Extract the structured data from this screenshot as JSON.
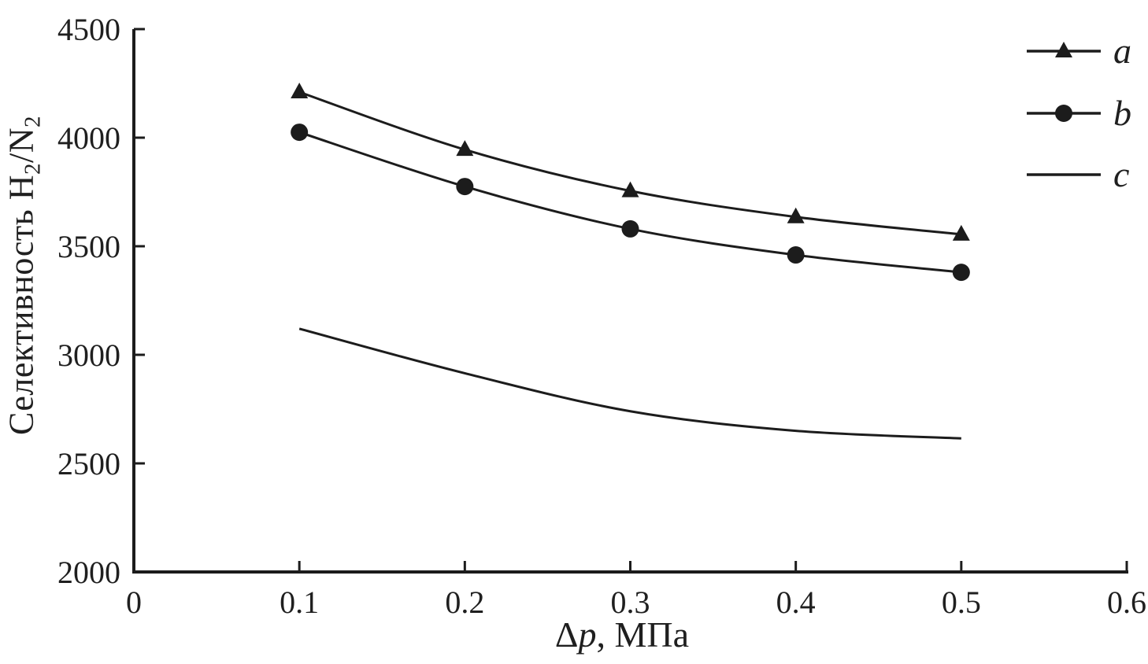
{
  "chart_data": {
    "type": "line",
    "title": "",
    "xlabel": "Δp, МПа",
    "xlabel_parts": [
      "Δ",
      "p",
      ", МПа"
    ],
    "ylabel": "Селективность H2/N2",
    "ylabel_parts": [
      "Селективность H",
      "2",
      "/N",
      "2"
    ],
    "xlim": [
      0,
      0.6
    ],
    "ylim": [
      2000,
      4500
    ],
    "x_ticks": [
      0,
      0.1,
      0.2,
      0.3,
      0.4,
      0.5,
      0.6
    ],
    "x_tick_labels": [
      "0",
      "0.1",
      "0.2",
      "0.3",
      "0.4",
      "0.5",
      "0.6"
    ],
    "y_ticks": [
      2000,
      2500,
      3000,
      3500,
      4000,
      4500
    ],
    "y_tick_labels": [
      "2000",
      "2500",
      "3000",
      "3500",
      "4000",
      "4500"
    ],
    "grid": false,
    "line_color": "#1c1c1c",
    "text_color": "#1f1f1f",
    "background_color": "#ffffff",
    "x": [
      0.1,
      0.2,
      0.3,
      0.4,
      0.5
    ],
    "series": [
      {
        "name": "a",
        "marker": "triangle",
        "values": [
          4210,
          3945,
          3755,
          3635,
          3555
        ]
      },
      {
        "name": "b",
        "marker": "circle",
        "values": [
          4025,
          3775,
          3580,
          3460,
          3380
        ]
      },
      {
        "name": "c",
        "marker": "none",
        "values": [
          3120,
          2915,
          2740,
          2650,
          2615
        ]
      }
    ],
    "legend": {
      "position": "top-right",
      "items": [
        {
          "label": "a",
          "marker": "triangle"
        },
        {
          "label": "b",
          "marker": "circle"
        },
        {
          "label": "c",
          "marker": "line"
        }
      ]
    }
  }
}
